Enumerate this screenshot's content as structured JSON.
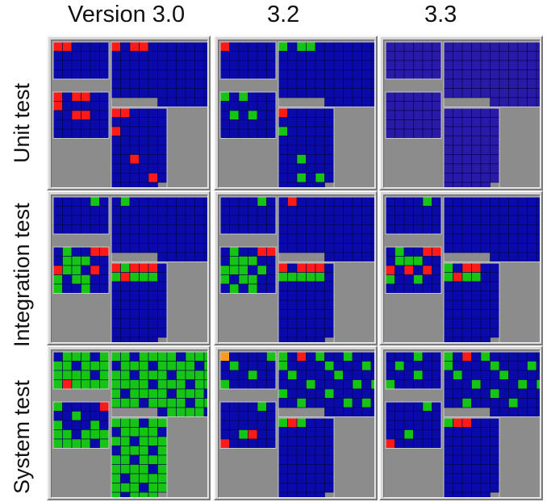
{
  "columns": [
    "Version 3.0",
    "3.2",
    "3.3"
  ],
  "rows": [
    "Unit test",
    "Integration test",
    "System test"
  ],
  "legend_colors": {
    "uncovered": "#0a0aaa",
    "covered": "#16c416",
    "failed": "#ff1a1a",
    "warning": "#ff9a1a",
    "background": "#8c8c8c",
    "faded": "#2a1aa8"
  }
}
